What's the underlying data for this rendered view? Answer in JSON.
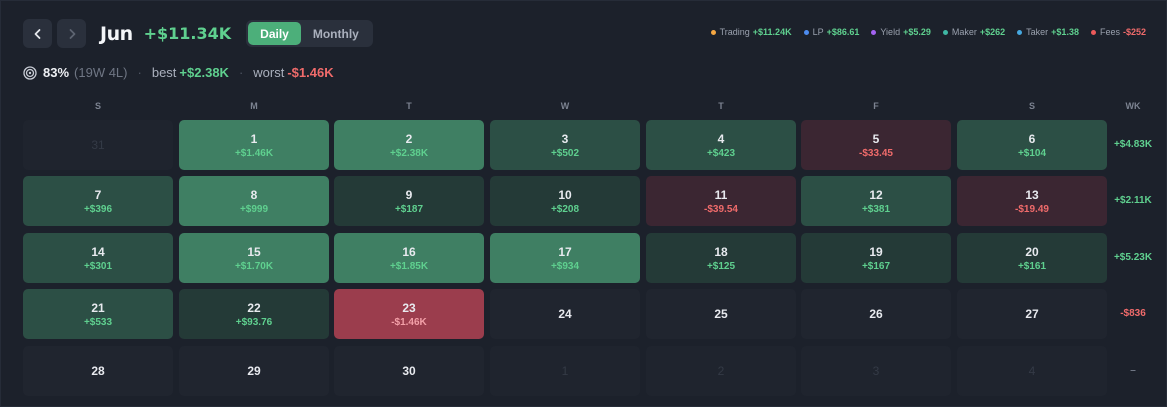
{
  "header": {
    "month": "Jun",
    "total": "+$11.34K",
    "view_tabs": [
      {
        "label": "Daily",
        "active": true
      },
      {
        "label": "Monthly",
        "active": false
      }
    ]
  },
  "legend": [
    {
      "label": "Trading",
      "value": "+$11.24K",
      "color": "#f5a742",
      "tone": "pos"
    },
    {
      "label": "LP",
      "value": "+$86.61",
      "color": "#4d8cf0",
      "tone": "pos"
    },
    {
      "label": "Yield",
      "value": "+$5.29",
      "color": "#a463f2",
      "tone": "pos"
    },
    {
      "label": "Maker",
      "value": "+$262",
      "color": "#3fb7a4",
      "tone": "pos"
    },
    {
      "label": "Taker",
      "value": "+$1.38",
      "color": "#46a8e0",
      "tone": "pos"
    },
    {
      "label": "Fees",
      "value": "-$252",
      "color": "#ec5a5a",
      "tone": "neg"
    }
  ],
  "stats": {
    "win_rate": "83%",
    "record": "(19W 4L)",
    "best_label": "best",
    "best_value": "+$2.38K",
    "worst_label": "worst",
    "worst_value": "-$1.46K"
  },
  "weekdays": [
    "S",
    "M",
    "T",
    "W",
    "T",
    "F",
    "S"
  ],
  "week_col_label": "WK",
  "colors": {
    "pos_strong": "#3f7f63",
    "pos_mid": "#2c4f45",
    "pos_weak": "#243a37",
    "neg_strong": "#9b3d4d",
    "neg_weak": "#3b2632",
    "empty": "#20252f",
    "out": "#1f242e"
  },
  "weeks": [
    {
      "total": "+$4.83K",
      "tone": "pos",
      "days": [
        {
          "d": "31",
          "pnl": "",
          "level": "out"
        },
        {
          "d": "1",
          "pnl": "+$1.46K",
          "level": "pos_strong"
        },
        {
          "d": "2",
          "pnl": "+$2.38K",
          "level": "pos_strong"
        },
        {
          "d": "3",
          "pnl": "+$502",
          "level": "pos_mid"
        },
        {
          "d": "4",
          "pnl": "+$423",
          "level": "pos_mid"
        },
        {
          "d": "5",
          "pnl": "-$33.45",
          "level": "neg_weak"
        },
        {
          "d": "6",
          "pnl": "+$104",
          "level": "pos_mid"
        }
      ]
    },
    {
      "total": "+$2.11K",
      "tone": "pos",
      "days": [
        {
          "d": "7",
          "pnl": "+$396",
          "level": "pos_mid"
        },
        {
          "d": "8",
          "pnl": "+$999",
          "level": "pos_strong"
        },
        {
          "d": "9",
          "pnl": "+$187",
          "level": "pos_weak"
        },
        {
          "d": "10",
          "pnl": "+$208",
          "level": "pos_weak"
        },
        {
          "d": "11",
          "pnl": "-$39.54",
          "level": "neg_weak"
        },
        {
          "d": "12",
          "pnl": "+$381",
          "level": "pos_mid"
        },
        {
          "d": "13",
          "pnl": "-$19.49",
          "level": "neg_weak"
        }
      ]
    },
    {
      "total": "+$5.23K",
      "tone": "pos",
      "days": [
        {
          "d": "14",
          "pnl": "+$301",
          "level": "pos_mid"
        },
        {
          "d": "15",
          "pnl": "+$1.70K",
          "level": "pos_strong"
        },
        {
          "d": "16",
          "pnl": "+$1.85K",
          "level": "pos_strong"
        },
        {
          "d": "17",
          "pnl": "+$934",
          "level": "pos_strong"
        },
        {
          "d": "18",
          "pnl": "+$125",
          "level": "pos_weak"
        },
        {
          "d": "19",
          "pnl": "+$167",
          "level": "pos_weak"
        },
        {
          "d": "20",
          "pnl": "+$161",
          "level": "pos_weak"
        }
      ]
    },
    {
      "total": "-$836",
      "tone": "neg",
      "days": [
        {
          "d": "21",
          "pnl": "+$533",
          "level": "pos_mid"
        },
        {
          "d": "22",
          "pnl": "+$93.76",
          "level": "pos_weak"
        },
        {
          "d": "23",
          "pnl": "-$1.46K",
          "level": "neg_strong"
        },
        {
          "d": "24",
          "pnl": "",
          "level": "empty"
        },
        {
          "d": "25",
          "pnl": "",
          "level": "empty"
        },
        {
          "d": "26",
          "pnl": "",
          "level": "empty"
        },
        {
          "d": "27",
          "pnl": "",
          "level": "empty"
        }
      ]
    },
    {
      "total": "–",
      "tone": "muted",
      "days": [
        {
          "d": "28",
          "pnl": "",
          "level": "empty"
        },
        {
          "d": "29",
          "pnl": "",
          "level": "empty"
        },
        {
          "d": "30",
          "pnl": "",
          "level": "empty"
        },
        {
          "d": "1",
          "pnl": "",
          "level": "out"
        },
        {
          "d": "2",
          "pnl": "",
          "level": "out"
        },
        {
          "d": "3",
          "pnl": "",
          "level": "out"
        },
        {
          "d": "4",
          "pnl": "",
          "level": "out"
        }
      ]
    }
  ]
}
